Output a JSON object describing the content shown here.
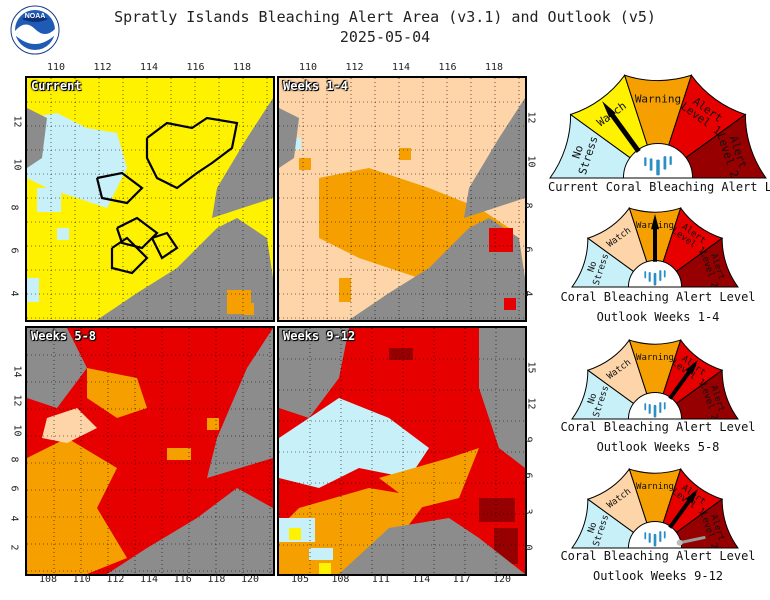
{
  "header": {
    "title": "Spratly Islands Bleaching Alert Area (v3.1) and Outlook (v5)",
    "date": "2025-05-04",
    "logo_text": "NOAA"
  },
  "colors": {
    "no_stress": "#c8f0f8",
    "watch": "#fff200",
    "warning": "#f5a000",
    "alert1": "#e60000",
    "alert2": "#960000",
    "outlook_watch": "#fdd5a8",
    "land": "#8c8c8c"
  },
  "maps": [
    {
      "id": "current",
      "label": "Current",
      "top_ticks": [
        "110",
        "112",
        "114",
        "116",
        "118"
      ],
      "left_ticks": [
        "12",
        "10",
        "8",
        "6",
        "4"
      ],
      "right_ticks": [],
      "bottom_ticks": []
    },
    {
      "id": "weeks1-4",
      "label": "Weeks 1-4",
      "top_ticks": [
        "110",
        "112",
        "114",
        "116",
        "118"
      ],
      "left_ticks": [],
      "right_ticks": [
        "12",
        "10",
        "8",
        "6",
        "4"
      ],
      "bottom_ticks": []
    },
    {
      "id": "weeks5-8",
      "label": "Weeks 5-8",
      "top_ticks": [],
      "left_ticks": [
        "14",
        "12",
        "10",
        "8",
        "6",
        "4",
        "2"
      ],
      "right_ticks": [],
      "bottom_ticks": [
        "108",
        "110",
        "112",
        "114",
        "116",
        "118",
        "120"
      ]
    },
    {
      "id": "weeks9-12",
      "label": "Weeks 9-12",
      "top_ticks": [],
      "left_ticks": [],
      "right_ticks": [
        "15",
        "12",
        "9",
        "6",
        "3",
        "0"
      ],
      "bottom_ticks": [
        "105",
        "108",
        "111",
        "114",
        "117",
        "120"
      ]
    }
  ],
  "gauges": [
    {
      "id": "current",
      "caption_lines": [
        "Current Coral Bleaching Alert Level"
      ],
      "labels": [
        "No\nStress",
        "Watch",
        "Warning",
        "Alert\nLevel 1",
        "Alert\nLevel 2"
      ],
      "level": "Watch",
      "style": "current"
    },
    {
      "id": "weeks1-4",
      "caption_lines": [
        "Coral Bleaching Alert Level",
        "Outlook Weeks 1-4"
      ],
      "labels": [
        "No\nStress",
        "Watch",
        "Warning",
        "Alert\nLevel 1",
        "Alert\nLevel 2"
      ],
      "level": "Warning",
      "style": "outlook"
    },
    {
      "id": "weeks5-8",
      "caption_lines": [
        "Coral Bleaching Alert Level",
        "Outlook Weeks 5-8"
      ],
      "labels": [
        "No\nStress",
        "Watch",
        "Warning",
        "Alert\nLevel 1",
        "Alert\nLevel 2"
      ],
      "level": "Alert Level 1",
      "style": "outlook"
    },
    {
      "id": "weeks9-12",
      "caption_lines": [
        "Coral Bleaching Alert Level",
        "Outlook Weeks 9-12"
      ],
      "labels": [
        "No\nStress",
        "Watch",
        "Warning",
        "Alert\nLevel 1",
        "Alert\nLevel 2"
      ],
      "level": "Alert Level 1",
      "secondary_level": "Alert Level 2",
      "style": "outlook"
    }
  ],
  "chart_data": {
    "type": "heatmap",
    "title": "Spratly Islands Bleaching Alert Area (v3.1) and Outlook (v5)",
    "date": "2025-05-04",
    "legend_levels": [
      "No Stress",
      "Watch",
      "Warning",
      "Alert Level 1",
      "Alert Level 2"
    ],
    "panels": [
      {
        "name": "Current",
        "dominant_level": "Watch",
        "lon_ticks": [
          110,
          112,
          114,
          116,
          118
        ],
        "lat_ticks": [
          12,
          10,
          8,
          6,
          4
        ]
      },
      {
        "name": "Weeks 1-4",
        "dominant_level": "Watch",
        "lon_ticks": [
          110,
          112,
          114,
          116,
          118
        ],
        "lat_ticks": [
          12,
          10,
          8,
          6,
          4
        ]
      },
      {
        "name": "Weeks 5-8",
        "dominant_level": "Alert Level 1",
        "lon_ticks": [
          108,
          110,
          112,
          114,
          116,
          118,
          120
        ],
        "lat_ticks": [
          14,
          12,
          10,
          8,
          6,
          4,
          2
        ]
      },
      {
        "name": "Weeks 9-12",
        "dominant_level": "Alert Level 1",
        "lon_ticks": [
          105,
          108,
          111,
          114,
          117,
          120
        ],
        "lat_ticks": [
          15,
          12,
          9,
          6,
          3,
          0
        ]
      }
    ],
    "gauge_levels": {
      "Current": "Watch",
      "Outlook Weeks 1-4": "Warning",
      "Outlook Weeks 5-8": "Alert Level 1",
      "Outlook Weeks 9-12": "Alert Level 1"
    }
  }
}
